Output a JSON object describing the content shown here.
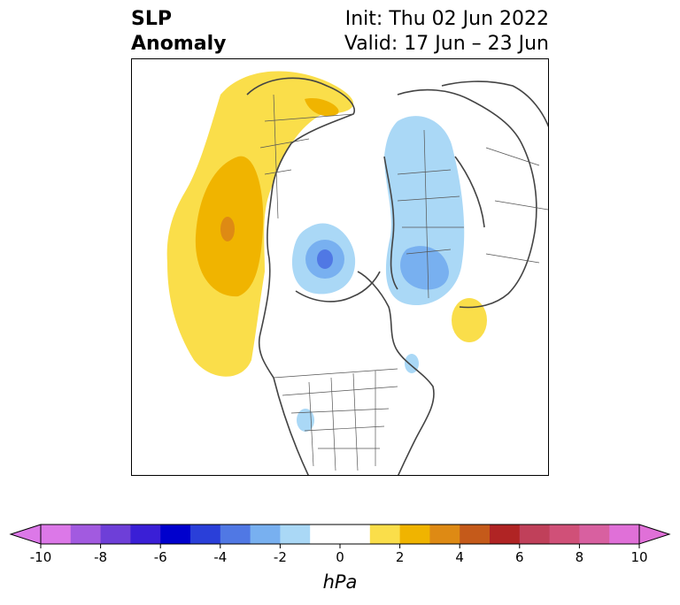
{
  "title": {
    "line1": "SLP",
    "line2": "Anomaly"
  },
  "info": {
    "init": "Init: Thu 02 Jun 2022",
    "valid": "Valid: 17 Jun – 23 Jun"
  },
  "colorbar": {
    "unit": "hPa",
    "tick_labels": [
      "-10",
      "-8",
      "-6",
      "-4",
      "-2",
      "0",
      "2",
      "4",
      "6",
      "8",
      "10"
    ],
    "ticks": [
      -10,
      -8,
      -6,
      -4,
      -2,
      0,
      2,
      4,
      6,
      8,
      10
    ],
    "range": [
      -10,
      10
    ],
    "extend": "both",
    "colors": [
      "#dc78e8",
      "#a25ae0",
      "#6e3fd8",
      "#3a1fd6",
      "#0000cd",
      "#2a3fd9",
      "#5078e4",
      "#78b0f0",
      "#aad8f6",
      "#ffffff",
      "#ffffff",
      "#fade4a",
      "#f0b400",
      "#de8a14",
      "#c55a1a",
      "#b02424",
      "#c0405a",
      "#d05078",
      "#d860a0",
      "#e070d8"
    ],
    "under_color": "#dc78e8",
    "over_color": "#e070d8"
  },
  "map": {
    "projection": "north polar stereographic",
    "features": [
      "coastlines",
      "country borders",
      "US state borders",
      "Canadian province borders"
    ]
  }
}
